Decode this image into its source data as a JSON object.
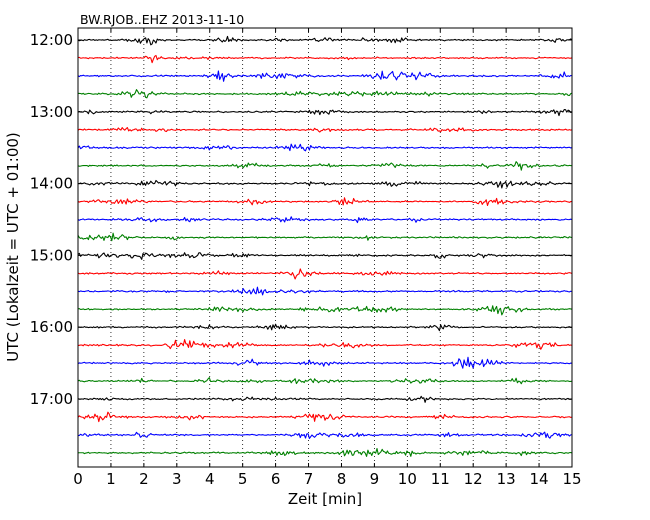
{
  "chart_data": {
    "type": "line",
    "title": "BW.RJOB..EHZ 2013-11-10",
    "xlabel": "Zeit  [min]",
    "ylabel": "UTC (Lokalzeit = UTC + 01:00)",
    "xlim": [
      0,
      15
    ],
    "x_ticks": [
      "0",
      "1",
      "2",
      "3",
      "4",
      "5",
      "6",
      "7",
      "8",
      "9",
      "10",
      "11",
      "12",
      "13",
      "14",
      "15"
    ],
    "vertical_grid": "dotted, at each minute",
    "y_ticks": [
      "12:00",
      "13:00",
      "14:00",
      "15:00",
      "16:00",
      "17:00"
    ],
    "row_minutes": 15,
    "row_count": 24,
    "trace_colors": [
      "#000000",
      "#ff0000",
      "#0000ff",
      "#008000"
    ],
    "waveform": "seismic noise, amplitude varies per row"
  }
}
